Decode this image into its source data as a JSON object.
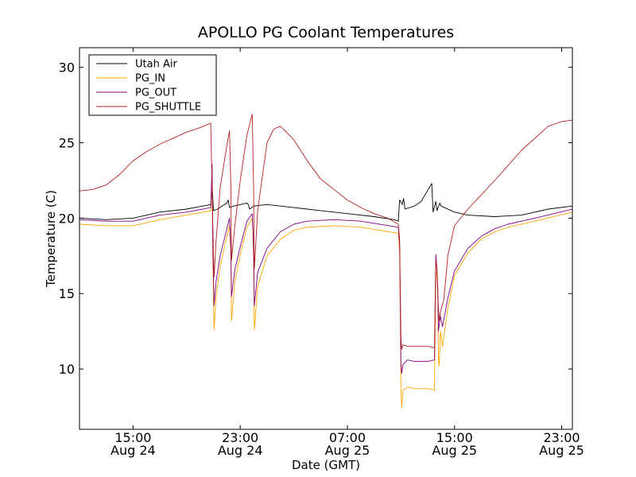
{
  "chart_data": {
    "type": "line",
    "title": "APOLLO PG Coolant Temperatures",
    "xlabel": "Date (GMT)",
    "ylabel": "Temperature (C)",
    "xlim_hours": [
      11,
      47.8
    ],
    "ylim": [
      6,
      31.3
    ],
    "legend_position": "top-left",
    "x_unit": "hours since Aug 24 00:00 GMT",
    "y_ticks": [
      10,
      15,
      20,
      25,
      30
    ],
    "x_ticks": [
      {
        "x": 15,
        "time": "15:00",
        "date": "Aug 24"
      },
      {
        "x": 23,
        "time": "23:00",
        "date": "Aug 24"
      },
      {
        "x": 31,
        "time": "07:00",
        "date": "Aug 25"
      },
      {
        "x": 39,
        "time": "15:00",
        "date": "Aug 25"
      },
      {
        "x": 47,
        "time": "23:00",
        "date": "Aug 25"
      }
    ],
    "series": [
      {
        "name": "Utah Air",
        "color": "#000000",
        "points": [
          [
            11,
            20
          ],
          [
            13,
            19.9
          ],
          [
            15,
            20
          ],
          [
            17,
            20.4
          ],
          [
            19,
            20.6
          ],
          [
            20.8,
            20.9
          ],
          [
            20.9,
            22.2
          ],
          [
            21,
            20.5
          ],
          [
            21.3,
            20.6
          ],
          [
            22,
            21
          ],
          [
            22.1,
            21.2
          ],
          [
            22.2,
            20.7
          ],
          [
            22.5,
            20.8
          ],
          [
            23.5,
            21
          ],
          [
            23.6,
            20.9
          ],
          [
            23.7,
            20.6
          ],
          [
            24,
            20.8
          ],
          [
            25,
            20.9
          ],
          [
            27,
            20.7
          ],
          [
            29,
            20.5
          ],
          [
            31,
            20.3
          ],
          [
            33,
            20.1
          ],
          [
            34.5,
            19.9
          ],
          [
            34.8,
            19.8
          ],
          [
            34.9,
            21.2
          ],
          [
            35.1,
            20.9
          ],
          [
            35.2,
            21.3
          ],
          [
            35.3,
            20.6
          ],
          [
            36,
            20.8
          ],
          [
            36.5,
            21.1
          ],
          [
            37.3,
            22.3
          ],
          [
            37.4,
            20.4
          ],
          [
            37.6,
            21.1
          ],
          [
            37.7,
            20.5
          ],
          [
            37.9,
            21
          ],
          [
            38,
            20.8
          ],
          [
            39,
            20.4
          ],
          [
            40,
            20.2
          ],
          [
            42,
            20.1
          ],
          [
            44,
            20.2
          ],
          [
            46,
            20.6
          ],
          [
            47.8,
            20.8
          ]
        ]
      },
      {
        "name": "PG_IN",
        "color": "#ffa500",
        "points": [
          [
            11,
            19.6
          ],
          [
            13,
            19.5
          ],
          [
            15,
            19.5
          ],
          [
            17,
            19.9
          ],
          [
            19,
            20.2
          ],
          [
            20.8,
            20.5
          ],
          [
            20.9,
            23.1
          ],
          [
            20.95,
            18
          ],
          [
            21,
            14.5
          ],
          [
            21.05,
            12.6
          ],
          [
            21.2,
            14.8
          ],
          [
            21.5,
            16.8
          ],
          [
            22,
            18.8
          ],
          [
            22.2,
            19.5
          ],
          [
            22.3,
            17.5
          ],
          [
            22.35,
            13.2
          ],
          [
            22.6,
            15.8
          ],
          [
            23,
            17.6
          ],
          [
            23.5,
            19.4
          ],
          [
            23.9,
            20
          ],
          [
            24.0,
            17.5
          ],
          [
            24.05,
            12.6
          ],
          [
            24.3,
            15.5
          ],
          [
            25,
            17.5
          ],
          [
            26,
            18.6
          ],
          [
            27,
            19.2
          ],
          [
            28,
            19.4
          ],
          [
            30,
            19.5
          ],
          [
            32,
            19.4
          ],
          [
            34.8,
            19.0
          ],
          [
            34.9,
            17.8
          ],
          [
            35.0,
            8.8
          ],
          [
            35.05,
            7.4
          ],
          [
            35.15,
            8.6
          ],
          [
            35.5,
            8.8
          ],
          [
            36,
            8.7
          ],
          [
            37,
            8.7
          ],
          [
            37.5,
            8.6
          ],
          [
            37.6,
            16.5
          ],
          [
            37.7,
            16
          ],
          [
            37.75,
            15
          ],
          [
            37.8,
            10.5
          ],
          [
            37.85,
            10.2
          ],
          [
            37.95,
            12.5
          ],
          [
            38.1,
            11.5
          ],
          [
            38.5,
            14
          ],
          [
            39,
            16.2
          ],
          [
            40,
            17.7
          ],
          [
            41,
            18.6
          ],
          [
            42,
            19.1
          ],
          [
            43,
            19.4
          ],
          [
            45,
            19.8
          ],
          [
            47.8,
            20.4
          ]
        ]
      },
      {
        "name": "PG_OUT",
        "color": "#800080",
        "points": [
          [
            11,
            19.9
          ],
          [
            13,
            19.8
          ],
          [
            15,
            19.8
          ],
          [
            17,
            20.2
          ],
          [
            19,
            20.4
          ],
          [
            20.8,
            20.7
          ],
          [
            20.9,
            23.6
          ],
          [
            20.95,
            18.5
          ],
          [
            21,
            16.2
          ],
          [
            21.05,
            14.2
          ],
          [
            21.2,
            15.8
          ],
          [
            21.5,
            17.5
          ],
          [
            22,
            19.3
          ],
          [
            22.2,
            20
          ],
          [
            22.3,
            18
          ],
          [
            22.35,
            14.8
          ],
          [
            22.6,
            16.6
          ],
          [
            23,
            18.1
          ],
          [
            23.5,
            19.8
          ],
          [
            23.9,
            20.3
          ],
          [
            24.0,
            18
          ],
          [
            24.05,
            14.2
          ],
          [
            24.3,
            16.4
          ],
          [
            25,
            18
          ],
          [
            26,
            19.1
          ],
          [
            27,
            19.6
          ],
          [
            28,
            19.8
          ],
          [
            30,
            19.9
          ],
          [
            32,
            19.8
          ],
          [
            34.8,
            19.4
          ],
          [
            34.9,
            18.2
          ],
          [
            35.0,
            10.4
          ],
          [
            35.05,
            9.7
          ],
          [
            35.15,
            10.3
          ],
          [
            35.5,
            10.6
          ],
          [
            36,
            10.5
          ],
          [
            37,
            10.5
          ],
          [
            37.5,
            10.6
          ],
          [
            37.6,
            17.6
          ],
          [
            37.7,
            16.5
          ],
          [
            37.75,
            15.3
          ],
          [
            37.8,
            12.5
          ],
          [
            37.85,
            12.9
          ],
          [
            37.95,
            13.5
          ],
          [
            38.1,
            12.8
          ],
          [
            38.5,
            14.7
          ],
          [
            39,
            16.5
          ],
          [
            40,
            18
          ],
          [
            41,
            18.8
          ],
          [
            42,
            19.3
          ],
          [
            43,
            19.6
          ],
          [
            45,
            20
          ],
          [
            47.8,
            20.6
          ]
        ]
      },
      {
        "name": "PG_SHUTTLE",
        "color": "#b22222",
        "points": [
          [
            11,
            21.8
          ],
          [
            12,
            21.9
          ],
          [
            13,
            22.2
          ],
          [
            14,
            22.9
          ],
          [
            15,
            23.8
          ],
          [
            16,
            24.4
          ],
          [
            17,
            24.9
          ],
          [
            18,
            25.3
          ],
          [
            19,
            25.7
          ],
          [
            20,
            26.0
          ],
          [
            20.8,
            26.3
          ],
          [
            20.9,
            22
          ],
          [
            21,
            17.5
          ],
          [
            21.05,
            16.1
          ],
          [
            21.2,
            18.5
          ],
          [
            21.5,
            22
          ],
          [
            22,
            24.8
          ],
          [
            22.2,
            25.8
          ],
          [
            22.3,
            22
          ],
          [
            22.35,
            17.2
          ],
          [
            22.6,
            19.5
          ],
          [
            23,
            22.5
          ],
          [
            23.5,
            25.5
          ],
          [
            23.9,
            26.9
          ],
          [
            24.0,
            22
          ],
          [
            24.05,
            16.6
          ],
          [
            24.3,
            20.5
          ],
          [
            25,
            25
          ],
          [
            25.5,
            25.9
          ],
          [
            26,
            26.1
          ],
          [
            27,
            25.2
          ],
          [
            28,
            23.8
          ],
          [
            29,
            22.6
          ],
          [
            30,
            21.9
          ],
          [
            31,
            21.2
          ],
          [
            32,
            20.7
          ],
          [
            33,
            20.3
          ],
          [
            34,
            20
          ],
          [
            34.8,
            19.6
          ],
          [
            34.9,
            18.6
          ],
          [
            35.0,
            12.1
          ],
          [
            35.05,
            11.3
          ],
          [
            35.15,
            11.6
          ],
          [
            35.5,
            11.5
          ],
          [
            36,
            11.5
          ],
          [
            37,
            11.5
          ],
          [
            37.5,
            11.4
          ],
          [
            37.6,
            17.2
          ],
          [
            37.7,
            16.4
          ],
          [
            37.75,
            14.8
          ],
          [
            37.8,
            14.1
          ],
          [
            37.85,
            13.2
          ],
          [
            37.95,
            13.8
          ],
          [
            38.2,
            14.6
          ],
          [
            38.5,
            17.5
          ],
          [
            39,
            19.5
          ],
          [
            40,
            20.6
          ],
          [
            42,
            22.5
          ],
          [
            44,
            24.5
          ],
          [
            46,
            26.1
          ],
          [
            47,
            26.4
          ],
          [
            47.8,
            26.5
          ]
        ]
      }
    ]
  }
}
